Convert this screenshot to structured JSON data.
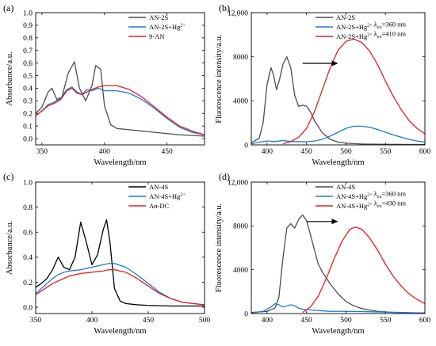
{
  "chart_data": [
    {
      "id": "a",
      "panel_label": "(a)",
      "type": "line",
      "xlabel": "Wavelength/nm",
      "ylabel": "Absorbance/a.u.",
      "xlim": [
        345,
        480
      ],
      "ylim": [
        -0.05,
        1.0
      ],
      "xticks": [
        350,
        400,
        450
      ],
      "yticks": [
        0.0,
        0.1,
        0.2,
        0.3,
        0.4,
        0.5,
        0.6,
        0.7,
        0.8,
        0.9,
        1.0
      ],
      "ytick_labels": [
        "0.0",
        "0.1",
        "0.2",
        "0.3",
        "0.4",
        "0.5",
        "0.6",
        "0.7",
        "0.8",
        "0.9",
        "1.0"
      ],
      "legend_position": "top-right",
      "series": [
        {
          "name": "AN-2S",
          "sup": "",
          "color": "#4d4d4d",
          "x": [
            345,
            350,
            355,
            358,
            362,
            366,
            371,
            376,
            380,
            385,
            390,
            393,
            397,
            400,
            405,
            410,
            420,
            440,
            460,
            480
          ],
          "y": [
            0.2,
            0.25,
            0.37,
            0.4,
            0.31,
            0.33,
            0.52,
            0.61,
            0.4,
            0.3,
            0.42,
            0.58,
            0.55,
            0.26,
            0.11,
            0.08,
            0.07,
            0.05,
            0.03,
            0.02
          ]
        },
        {
          "name": "AN-2S+Hg",
          "sup": "2+",
          "color": "#1f78d4",
          "x": [
            345,
            350,
            355,
            360,
            365,
            370,
            374,
            378,
            382,
            386,
            390,
            395,
            400,
            410,
            420,
            430,
            440,
            450,
            460,
            470,
            480
          ],
          "y": [
            0.18,
            0.22,
            0.27,
            0.29,
            0.32,
            0.39,
            0.41,
            0.37,
            0.35,
            0.39,
            0.38,
            0.4,
            0.38,
            0.38,
            0.36,
            0.31,
            0.24,
            0.16,
            0.09,
            0.05,
            0.03
          ]
        },
        {
          "name": "9-AN",
          "sup": "",
          "color": "#e02020",
          "x": [
            345,
            350,
            355,
            360,
            365,
            370,
            374,
            378,
            382,
            386,
            390,
            395,
            400,
            410,
            420,
            430,
            440,
            450,
            460,
            470,
            480
          ],
          "y": [
            0.18,
            0.22,
            0.26,
            0.28,
            0.31,
            0.38,
            0.4,
            0.36,
            0.35,
            0.37,
            0.39,
            0.41,
            0.42,
            0.42,
            0.39,
            0.33,
            0.25,
            0.17,
            0.1,
            0.06,
            0.03
          ]
        }
      ]
    },
    {
      "id": "b",
      "panel_label": "(b)",
      "type": "line",
      "xlabel": "Wavelength/nm",
      "ylabel": "Fluorescence intensity/a.u.",
      "xlim": [
        380,
        600
      ],
      "ylim": [
        0,
        12000
      ],
      "xticks": [
        400,
        450,
        500,
        550,
        600
      ],
      "yticks": [
        0,
        4000,
        8000,
        12000
      ],
      "ytick_labels": [
        "0",
        "4000",
        "8000",
        "12,000"
      ],
      "legend_position": "top-right",
      "arrow": {
        "from": [
          445,
          7400
        ],
        "to": [
          490,
          7400
        ]
      },
      "series": [
        {
          "name": "AN-2S",
          "sup": "",
          "sub": "",
          "suffix": "",
          "color": "#4d4d4d",
          "x": [
            380,
            390,
            395,
            400,
            405,
            408,
            412,
            416,
            420,
            425,
            430,
            435,
            440,
            445,
            450,
            455,
            460,
            470,
            480,
            490,
            500,
            520,
            550,
            600
          ],
          "y": [
            200,
            600,
            2000,
            5500,
            7000,
            6400,
            5000,
            6000,
            7300,
            8000,
            7000,
            4500,
            3500,
            3600,
            3500,
            3000,
            2200,
            1100,
            500,
            250,
            150,
            80,
            50,
            30
          ]
        },
        {
          "name": "AN-2S+Hg",
          "sup": "2+",
          "sub": "ex",
          "suffix": "=360 nm",
          "color": "#1f78d4",
          "x": [
            380,
            390,
            400,
            410,
            420,
            430,
            440,
            450,
            460,
            470,
            480,
            490,
            500,
            510,
            520,
            530,
            540,
            550,
            560,
            570,
            580,
            590,
            600
          ],
          "y": [
            100,
            250,
            350,
            300,
            400,
            300,
            300,
            280,
            350,
            500,
            800,
            1150,
            1500,
            1700,
            1700,
            1600,
            1400,
            1150,
            900,
            700,
            500,
            350,
            250
          ]
        },
        {
          "name": "AN-2S+Hg",
          "sup": "2+",
          "sub": "ex",
          "suffix": "=410 nm",
          "color": "#e02020",
          "x": [
            420,
            430,
            440,
            450,
            460,
            470,
            480,
            490,
            500,
            510,
            520,
            530,
            540,
            550,
            560,
            570,
            580,
            590,
            600
          ],
          "y": [
            100,
            300,
            700,
            1500,
            3000,
            5000,
            7000,
            8600,
            9400,
            9600,
            9300,
            8500,
            7300,
            5800,
            4400,
            3200,
            2200,
            1500,
            1000
          ]
        }
      ]
    },
    {
      "id": "c",
      "panel_label": "(c)",
      "type": "line",
      "xlabel": "Wavelength/nm",
      "ylabel": "Absorbance/a.u.",
      "xlim": [
        350,
        500
      ],
      "ylim": [
        -0.05,
        1.0
      ],
      "xticks": [
        350,
        400,
        450,
        500
      ],
      "yticks": [
        0.0,
        0.2,
        0.4,
        0.6,
        0.8,
        1.0
      ],
      "ytick_labels": [
        "0.0",
        "0.2",
        "0.4",
        "0.6",
        "0.8",
        "1.0"
      ],
      "legend_position": "top-right",
      "series": [
        {
          "name": "AN-4S",
          "sup": "",
          "color": "#000000",
          "x": [
            350,
            355,
            360,
            365,
            370,
            375,
            380,
            385,
            390,
            395,
            400,
            405,
            410,
            413,
            416,
            420,
            425,
            430,
            440,
            450,
            470,
            500
          ],
          "y": [
            0.16,
            0.19,
            0.23,
            0.3,
            0.4,
            0.32,
            0.3,
            0.4,
            0.68,
            0.52,
            0.34,
            0.42,
            0.62,
            0.7,
            0.52,
            0.15,
            0.05,
            0.03,
            0.02,
            0.015,
            0.01,
            0.01
          ]
        },
        {
          "name": "AN-4S+Hg",
          "sup": "2+",
          "color": "#1f78d4",
          "x": [
            350,
            355,
            360,
            365,
            370,
            375,
            380,
            390,
            400,
            410,
            415,
            420,
            430,
            440,
            450,
            460,
            470,
            480,
            490,
            500
          ],
          "y": [
            0.11,
            0.15,
            0.19,
            0.23,
            0.26,
            0.28,
            0.29,
            0.3,
            0.32,
            0.34,
            0.35,
            0.35,
            0.32,
            0.26,
            0.19,
            0.12,
            0.07,
            0.04,
            0.03,
            0.02
          ]
        },
        {
          "name": "An-DC",
          "sup": "",
          "color": "#e02020",
          "x": [
            350,
            355,
            360,
            365,
            370,
            375,
            380,
            390,
            400,
            410,
            415,
            420,
            430,
            440,
            450,
            460,
            470,
            480,
            490,
            500
          ],
          "y": [
            0.1,
            0.13,
            0.16,
            0.19,
            0.21,
            0.23,
            0.25,
            0.27,
            0.28,
            0.29,
            0.3,
            0.3,
            0.28,
            0.23,
            0.17,
            0.11,
            0.07,
            0.04,
            0.03,
            0.02
          ]
        }
      ]
    },
    {
      "id": "d",
      "panel_label": "(d)",
      "type": "line",
      "xlabel": "Wavelength/nm",
      "ylabel": "Fluorescence intensity/a.u.",
      "xlim": [
        380,
        600
      ],
      "ylim": [
        0,
        12000
      ],
      "xticks": [
        400,
        450,
        500,
        550,
        600
      ],
      "yticks": [
        0,
        4000,
        8000,
        12000
      ],
      "ytick_labels": [
        "0",
        "4000",
        "8000",
        "12,000"
      ],
      "legend_position": "top-right",
      "arrow": {
        "from": [
          450,
          8400
        ],
        "to": [
          490,
          8400
        ]
      },
      "series": [
        {
          "name": "AN-4S",
          "sup": "",
          "sub": "",
          "suffix": "",
          "color": "#4d4d4d",
          "x": [
            380,
            400,
            410,
            415,
            420,
            425,
            430,
            435,
            440,
            445,
            450,
            455,
            460,
            465,
            470,
            480,
            490,
            500,
            510,
            520,
            540,
            560,
            580,
            600
          ],
          "y": [
            100,
            200,
            500,
            1500,
            5000,
            7800,
            8200,
            7800,
            8600,
            9000,
            8500,
            7200,
            5800,
            4500,
            3800,
            2700,
            1800,
            1100,
            700,
            450,
            200,
            100,
            70,
            50
          ]
        },
        {
          "name": "AN-4S+Hg",
          "sup": "2+",
          "sub": "ex",
          "suffix": "=360 nm",
          "color": "#1f78d4",
          "x": [
            380,
            395,
            405,
            410,
            415,
            420,
            425,
            430,
            435,
            440,
            445,
            450,
            460,
            470,
            480,
            500,
            520,
            540,
            560,
            580,
            600
          ],
          "y": [
            50,
            200,
            600,
            900,
            800,
            600,
            700,
            800,
            700,
            500,
            400,
            350,
            300,
            250,
            200,
            200,
            180,
            150,
            120,
            80,
            50
          ]
        },
        {
          "name": "AN-4S+Hg",
          "sup": "2+",
          "sub": "ex",
          "suffix": "=430 nm",
          "color": "#e02020",
          "x": [
            445,
            455,
            465,
            475,
            485,
            495,
            505,
            512,
            520,
            530,
            540,
            550,
            560,
            570,
            580,
            590,
            600
          ],
          "y": [
            100,
            600,
            1600,
            3200,
            5000,
            6600,
            7700,
            7900,
            7700,
            6900,
            5800,
            4500,
            3400,
            2500,
            1800,
            1300,
            900
          ]
        }
      ]
    }
  ]
}
